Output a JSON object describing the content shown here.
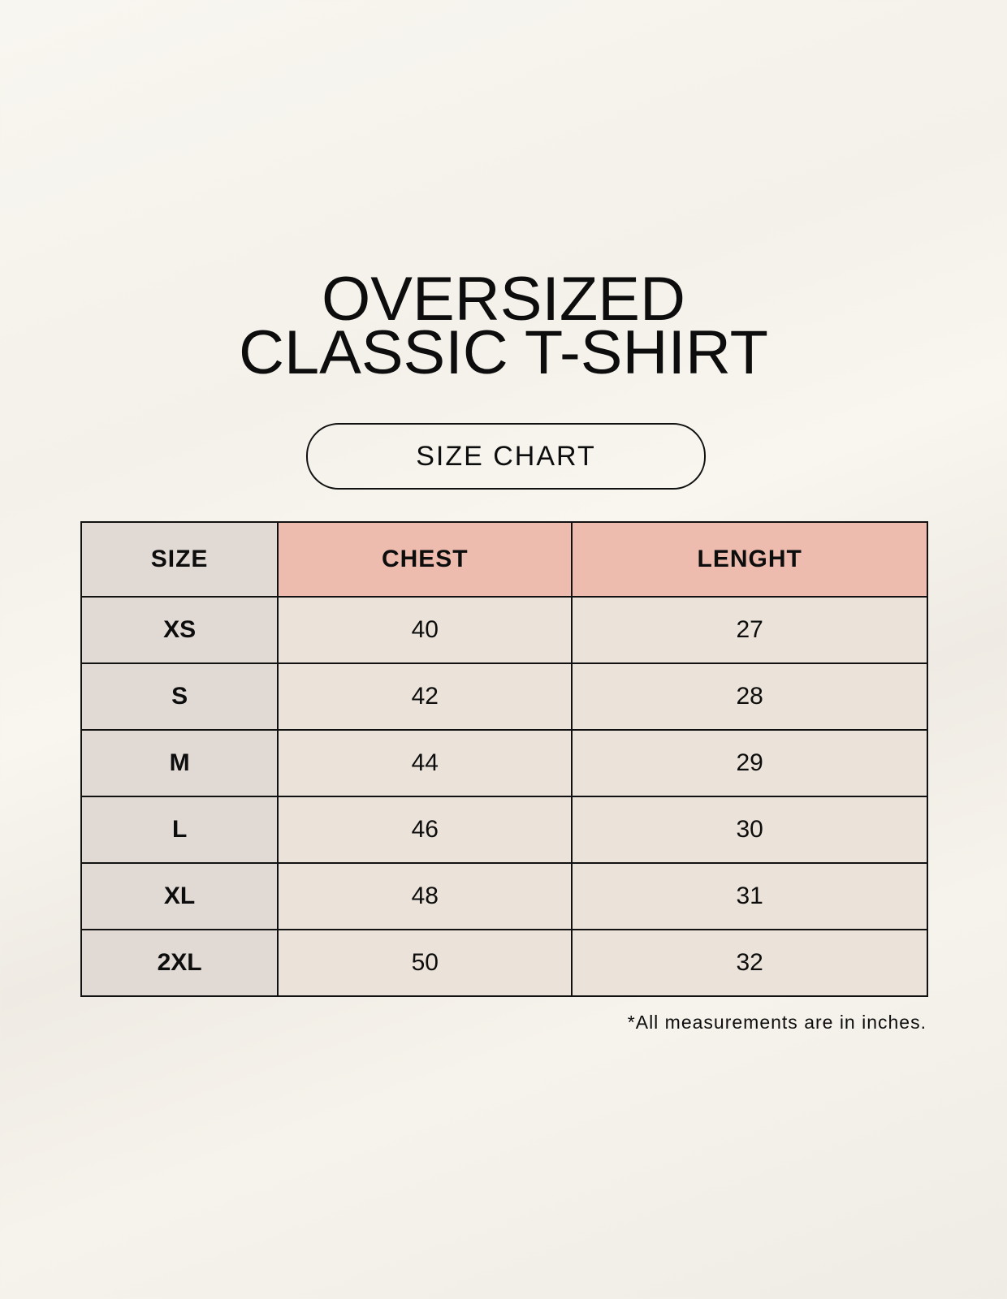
{
  "title": {
    "line1": "OVERSIZED",
    "line2": "CLASSIC T-SHIRT"
  },
  "badge": "SIZE CHART",
  "table": {
    "headers": [
      "SIZE",
      "CHEST",
      "LENGHT"
    ],
    "rows": [
      [
        "XS",
        "40",
        "27"
      ],
      [
        "S",
        "42",
        "28"
      ],
      [
        "M",
        "44",
        "29"
      ],
      [
        "L",
        "46",
        "30"
      ],
      [
        "XL",
        "48",
        "31"
      ],
      [
        "2XL",
        "50",
        "32"
      ]
    ]
  },
  "footnote": "*All measurements are in inches.",
  "colors": {
    "size_column": "#e0d9d4",
    "header_accent": "#edbcae",
    "cell": "#ebe3d9"
  }
}
